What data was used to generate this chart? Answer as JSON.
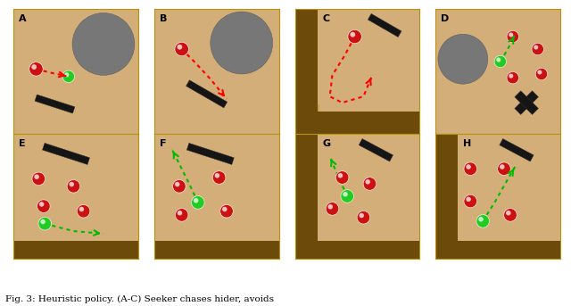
{
  "caption": "Fig. 3: Heuristic policy. (A-C) Seeker chases hider, avoids",
  "bg": "#D4AE78",
  "floor_dark": "#6B4A0A",
  "floor_mid": "#8B6020",
  "panel_border": "#B8920A",
  "gray_obstacle": "#777777",
  "ramp_color": "#1A1A1A",
  "panels": [
    "A",
    "B",
    "C",
    "D",
    "E",
    "F",
    "G",
    "H"
  ]
}
